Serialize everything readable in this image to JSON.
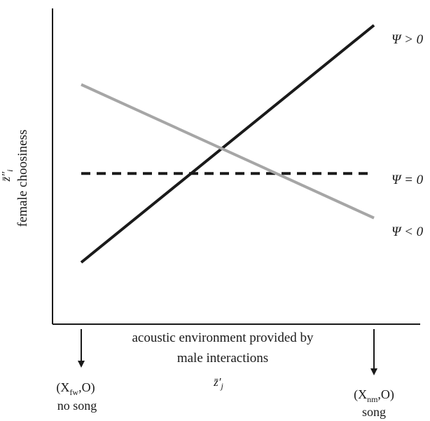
{
  "chart_data": {
    "type": "line",
    "title": "",
    "xlabel_lines": [
      "acoustic environment provided by",
      "male interactions"
    ],
    "xlabel_symbol": "z̄′",
    "xlabel_symbol_sub": "j",
    "ylabel": "female choosiness",
    "ylabel_symbol": "z̄″",
    "ylabel_symbol_sub": "i",
    "x": [
      0,
      1
    ],
    "xlim": [
      0,
      1
    ],
    "ylim": [
      0,
      1
    ],
    "grid": false,
    "legend": "inline-right",
    "series": [
      {
        "name": "Ψ > 0",
        "values": [
          0.2,
          1.0
        ],
        "color": "#1a1a1a",
        "dash": "solid"
      },
      {
        "name": "Ψ = 0",
        "values": [
          0.5,
          0.5
        ],
        "color": "#1a1a1a",
        "dash": "dashed"
      },
      {
        "name": "Ψ < 0",
        "values": [
          0.8,
          0.35
        ],
        "color": "#a6a6a6",
        "dash": "solid"
      }
    ],
    "x_endpoints": {
      "left": {
        "label": "X",
        "sub": "fw",
        "suffix": ",O)",
        "prefix": "(",
        "caption": "no song"
      },
      "right": {
        "label": "X",
        "sub": "nm",
        "suffix": ",O)",
        "prefix": "(",
        "caption": "song"
      }
    }
  }
}
